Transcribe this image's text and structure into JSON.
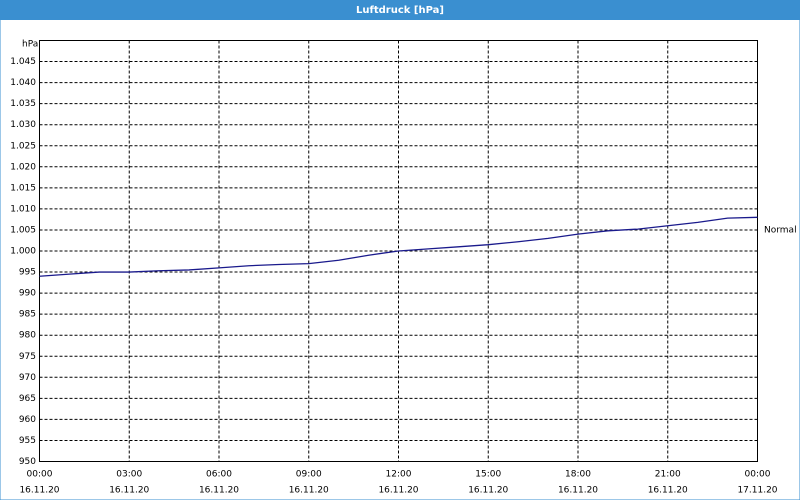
{
  "header": {
    "title": "Luftdruck [hPa]"
  },
  "chart_data": {
    "type": "line",
    "y_unit": "hPa",
    "x": [
      0,
      1,
      2,
      3,
      4,
      5,
      6,
      7,
      8,
      9,
      10,
      11,
      12,
      13,
      14,
      15,
      16,
      17,
      18,
      19,
      20,
      21,
      22,
      23,
      24
    ],
    "series": [
      {
        "name": "Luftdruck",
        "color": "#1a1a8c",
        "values": [
          994,
          994.5,
          995,
          995,
          995.3,
          995.5,
          996,
          996.5,
          996.8,
          997,
          997.8,
          999,
          1000,
          1000.5,
          1001,
          1001.5,
          1002.2,
          1003,
          1004,
          1004.8,
          1005.2,
          1006,
          1006.8,
          1007.8,
          1008
        ]
      }
    ],
    "xlim": [
      0,
      24
    ],
    "xticks": [
      {
        "value": 0,
        "label": "00:00",
        "date": "16.11.20"
      },
      {
        "value": 3,
        "label": "03:00",
        "date": "16.11.20"
      },
      {
        "value": 6,
        "label": "06:00",
        "date": "16.11.20"
      },
      {
        "value": 9,
        "label": "09:00",
        "date": "16.11.20"
      },
      {
        "value": 12,
        "label": "12:00",
        "date": "16.11.20"
      },
      {
        "value": 15,
        "label": "15:00",
        "date": "16.11.20"
      },
      {
        "value": 18,
        "label": "18:00",
        "date": "16.11.20"
      },
      {
        "value": 21,
        "label": "21:00",
        "date": "16.11.20"
      },
      {
        "value": 24,
        "label": "00:00",
        "date": "17.11.20"
      }
    ],
    "ylim": [
      950,
      1050
    ],
    "yticks": [
      950,
      955,
      960,
      965,
      970,
      975,
      980,
      985,
      990,
      995,
      {
        "value": 1000,
        "label": "1.000"
      },
      {
        "value": 1005,
        "label": "1.005"
      },
      {
        "value": 1010,
        "label": "1.010"
      },
      {
        "value": 1015,
        "label": "1.015"
      },
      {
        "value": 1020,
        "label": "1.020"
      },
      {
        "value": 1025,
        "label": "1.025"
      },
      {
        "value": 1030,
        "label": "1.030"
      },
      {
        "value": 1035,
        "label": "1.035"
      },
      {
        "value": 1040,
        "label": "1.040"
      },
      {
        "value": 1045,
        "label": "1.045"
      }
    ],
    "annotations": [
      {
        "text": "Normal",
        "y": 1005
      }
    ],
    "grid": true
  }
}
